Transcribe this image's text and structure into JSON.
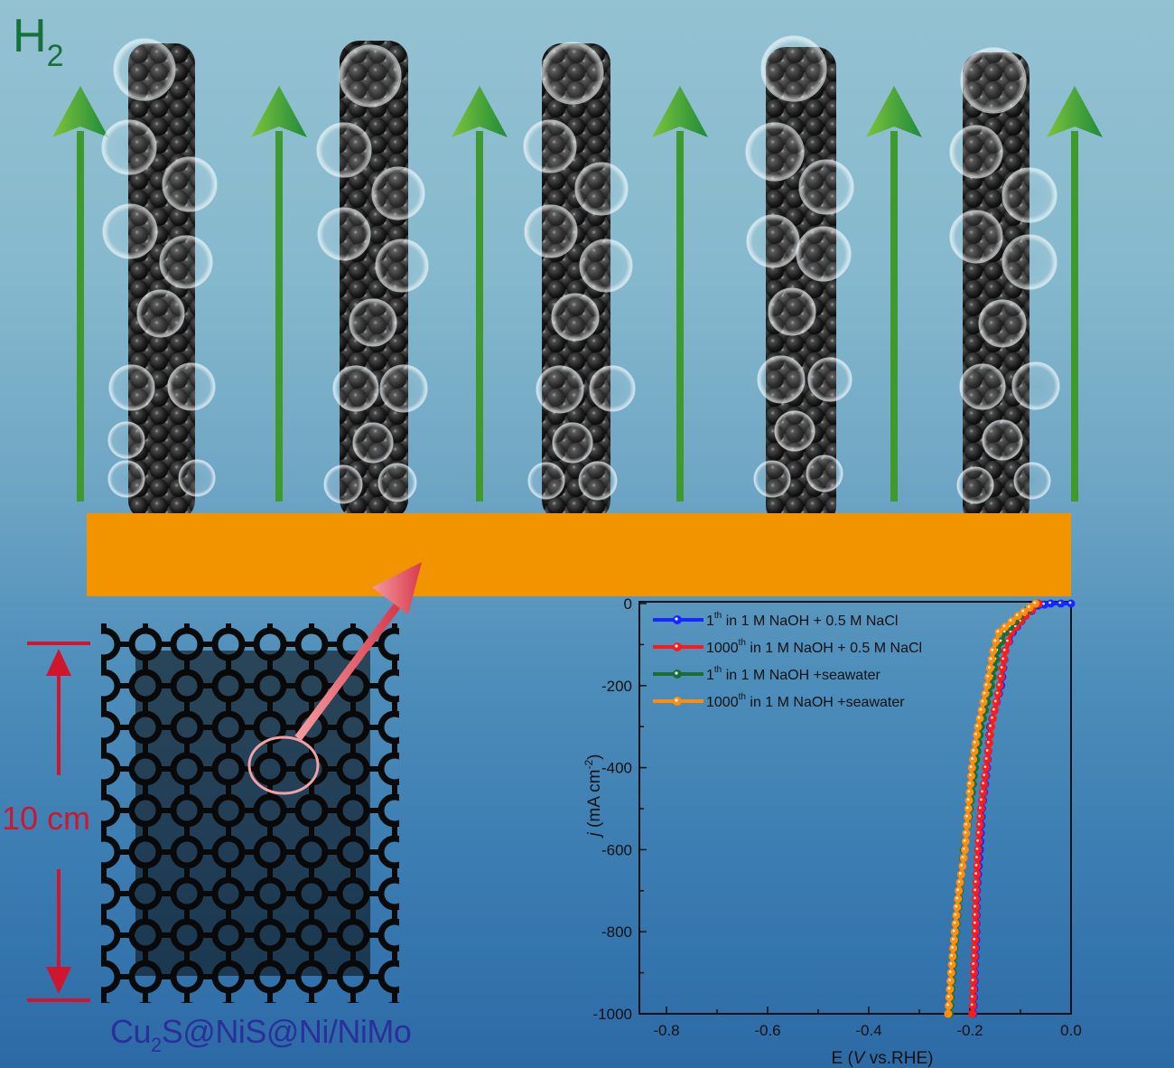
{
  "illustration": {
    "gas_label": "H",
    "gas_subscript": "2",
    "scale_label": "10 cm",
    "material_label_prefix": "Cu",
    "material_label_subscript": "2",
    "material_label_suffix": "S@NiS@Ni/NiMo",
    "colors": {
      "substrate": "#f29400",
      "arrow_up": "#3e9a2c",
      "pointer_arrow": "#e0505e",
      "scale_bar": "#d0152f",
      "gas_label": "#15703a",
      "material_label": "#2a2f9a"
    },
    "columns_count": 5,
    "arrows_count": 6
  },
  "chart_data": {
    "type": "line",
    "title": "",
    "xlabel": "E (V vs.RHE)",
    "ylabel": "j (mA cm-2)",
    "xlim": [
      -0.85,
      0.0
    ],
    "ylim": [
      -1000,
      0
    ],
    "xticks": [
      "-0.8",
      "-0.6",
      "-0.4",
      "-0.2",
      "0.0"
    ],
    "yticks": [
      "0",
      "-200",
      "-400",
      "-600",
      "-800",
      "-1000"
    ],
    "grid": false,
    "legend_position": "upper-left",
    "series": [
      {
        "name": "1th in 1 M NaOH + 0.5 M NaCl",
        "color": "#1428ff",
        "points": [
          [
            0.0,
            0
          ],
          [
            -0.04,
            0
          ],
          [
            -0.065,
            -5
          ],
          [
            -0.09,
            -30
          ],
          [
            -0.115,
            -70
          ],
          [
            -0.13,
            -115
          ],
          [
            -0.138,
            -200
          ],
          [
            -0.16,
            -300
          ],
          [
            -0.166,
            -400
          ],
          [
            -0.176,
            -500
          ],
          [
            -0.18,
            -600
          ],
          [
            -0.186,
            -700
          ],
          [
            -0.187,
            -800
          ],
          [
            -0.19,
            -900
          ],
          [
            -0.193,
            -1000
          ]
        ]
      },
      {
        "name": "1000th in 1 M NaOH + 0.5 M NaCl",
        "color": "#ff1a1a",
        "points": [
          [
            -0.064,
            0
          ],
          [
            -0.09,
            -30
          ],
          [
            -0.118,
            -70
          ],
          [
            -0.13,
            -115
          ],
          [
            -0.141,
            -200
          ],
          [
            -0.158,
            -300
          ],
          [
            -0.168,
            -400
          ],
          [
            -0.178,
            -500
          ],
          [
            -0.184,
            -600
          ],
          [
            -0.188,
            -700
          ],
          [
            -0.189,
            -800
          ],
          [
            -0.192,
            -900
          ],
          [
            -0.195,
            -1000
          ]
        ]
      },
      {
        "name": "1th in 1 M NaOH +seawater",
        "color": "#1a6e35",
        "points": [
          [
            -0.07,
            0
          ],
          [
            -0.1,
            -30
          ],
          [
            -0.13,
            -70
          ],
          [
            -0.145,
            -115
          ],
          [
            -0.158,
            -200
          ],
          [
            -0.178,
            -300
          ],
          [
            -0.19,
            -400
          ],
          [
            -0.2,
            -500
          ],
          [
            -0.212,
            -600
          ],
          [
            -0.22,
            -700
          ],
          [
            -0.228,
            -800
          ],
          [
            -0.234,
            -900
          ],
          [
            -0.24,
            -1000
          ]
        ]
      },
      {
        "name": "1000th in 1 M NaOH +seawater",
        "color": "#ff8c0a",
        "points": [
          [
            -0.07,
            0
          ],
          [
            -0.105,
            -30
          ],
          [
            -0.143,
            -70
          ],
          [
            -0.154,
            -115
          ],
          [
            -0.166,
            -200
          ],
          [
            -0.184,
            -300
          ],
          [
            -0.196,
            -400
          ],
          [
            -0.203,
            -500
          ],
          [
            -0.21,
            -600
          ],
          [
            -0.222,
            -700
          ],
          [
            -0.23,
            -800
          ],
          [
            -0.237,
            -900
          ],
          [
            -0.243,
            -1000
          ]
        ]
      }
    ],
    "legend": [
      {
        "base": "1",
        "sup": "th",
        "rest": " in 1 M NaOH + 0.5 M NaCl"
      },
      {
        "base": "1000",
        "sup": "th",
        "rest": " in 1 M NaOH + 0.5 M NaCl"
      },
      {
        "base": "1",
        "sup": "th",
        "rest": " in 1 M NaOH +seawater"
      },
      {
        "base": "1000",
        "sup": "th",
        "rest": " in 1 M NaOH +seawater"
      }
    ],
    "xlabel_parts": {
      "pre": "E (",
      "italic": "V",
      "post": " vs.RHE)"
    },
    "ylabel_parts": {
      "italic": "j",
      "pre": " (mA cm",
      "sup": "-2",
      "post": ")"
    }
  }
}
